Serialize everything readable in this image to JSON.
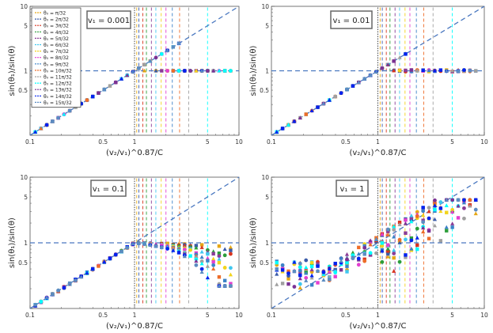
{
  "colors": {
    "diagonal_dash": "#4a78c0",
    "horizontal_dash": "#4a78c0",
    "frame": "#555555",
    "theta_colors": [
      "#e6a817",
      "#3b5ba9",
      "#d8341f",
      "#2d9e3b",
      "#8a3c96",
      "#3fc7f0",
      "#f2d41c",
      "#e33fd0",
      "#3c82c8",
      "#ee6d2a",
      "#a0a0a0",
      "#00ffff",
      "#7b3294",
      "#0022ee",
      "#5b8cc2"
    ]
  },
  "legend": {
    "entries": [
      "θ₀ = π/32",
      "θ₀ = 2π/32",
      "θ₀ = 3π/32",
      "θ₀ = 4π/32",
      "θ₀ = 5π/32",
      "θ₀ = 6π/32",
      "θ₀ = 7π/32",
      "θ₀ = 8π/32",
      "θ₀ = 9π/32",
      "θ₀ = 10π/32",
      "θ₀ = 11π/32",
      "θ₀ = 12π/32",
      "θ₀ = 13π/32",
      "θ₀ = 14π/32",
      "θ₀ = 15π/32"
    ]
  },
  "chart_data": [
    {
      "type": "scatter",
      "panel_label": "v₁ = 0.001",
      "xlabel": "(v₂/v₁)^0.87/C",
      "ylabel": "sin(θ₁)/sin(θ)",
      "xscale": "log",
      "yscale": "log",
      "xlim": [
        0.1,
        10
      ],
      "ylim": [
        0.1,
        10
      ],
      "x_ticks": [
        "0.1",
        "0.5",
        "1",
        "5",
        "10"
      ],
      "y_ticks": [
        "0.5",
        "1",
        "5",
        "10"
      ],
      "critical_ratios": [
        1.0,
        1.05,
        1.1,
        1.2,
        1.3,
        1.45,
        1.6,
        1.8,
        2.0,
        2.3,
        2.7,
        3.3,
        5.0
      ],
      "behavior": "points follow y = x below 1 and along the critical ratios up to ~2, then saturate at y = 1"
    },
    {
      "type": "scatter",
      "panel_label": "v₁ = 0.01",
      "xlabel": "(v₂/v₁)^0.87/C",
      "ylabel": "sin(θ₁)/sin(θ)",
      "xscale": "log",
      "yscale": "log",
      "xlim": [
        0.1,
        10
      ],
      "ylim": [
        0.1,
        10
      ],
      "x_ticks": [
        "0.1",
        "0.5",
        "1",
        "5",
        "10"
      ],
      "y_ticks": [
        "0.5",
        "1",
        "5",
        "10"
      ],
      "critical_ratios": [
        1.0,
        1.05,
        1.1,
        1.2,
        1.3,
        1.45,
        1.6,
        1.8,
        2.0,
        2.3,
        2.7,
        3.3,
        5.0
      ],
      "behavior": "points follow y = x below 1, then saturate at y = 1 with slight scatter"
    },
    {
      "type": "scatter",
      "panel_label": "v₁ = 0.1",
      "xlabel": "(v₂/v₁)^0.87/C",
      "ylabel": "sin(θ₁)/sin(θ)",
      "xscale": "log",
      "yscale": "log",
      "xlim": [
        0.1,
        10
      ],
      "ylim": [
        0.1,
        10
      ],
      "x_ticks": [
        "0.1",
        "0.5",
        "1",
        "5",
        "10"
      ],
      "y_ticks": [
        "0.5",
        "1",
        "5",
        "10"
      ],
      "critical_ratios": [
        1.0,
        1.05,
        1.1,
        1.2,
        1.3,
        1.45,
        1.6,
        1.8,
        2.0,
        2.3,
        2.7,
        3.3,
        5.0
      ],
      "behavior": "points follow y = x below 1, saturate near 1 and fan downward to ~0.25 for larger ratios"
    },
    {
      "type": "scatter",
      "panel_label": "v₁ = 1",
      "xlabel": "(v₂/v₁)^0.87/C",
      "ylabel": "sin(θ₁)/sin(θ)",
      "xscale": "log",
      "yscale": "log",
      "xlim": [
        0.1,
        10
      ],
      "ylim": [
        0.1,
        10
      ],
      "x_ticks": [
        "0.1",
        "0.5",
        "1",
        "5",
        "10"
      ],
      "y_ticks": [
        "0.5",
        "1",
        "5",
        "10"
      ],
      "critical_ratios": [
        1.0,
        1.05,
        1.1,
        1.2,
        1.3,
        1.45,
        1.6,
        1.8,
        2.0,
        2.3,
        2.7,
        3.3,
        5.0
      ],
      "behavior": "strong scatter: points spread between ~0.15 and ~4 on both sides of ratio 1"
    }
  ]
}
